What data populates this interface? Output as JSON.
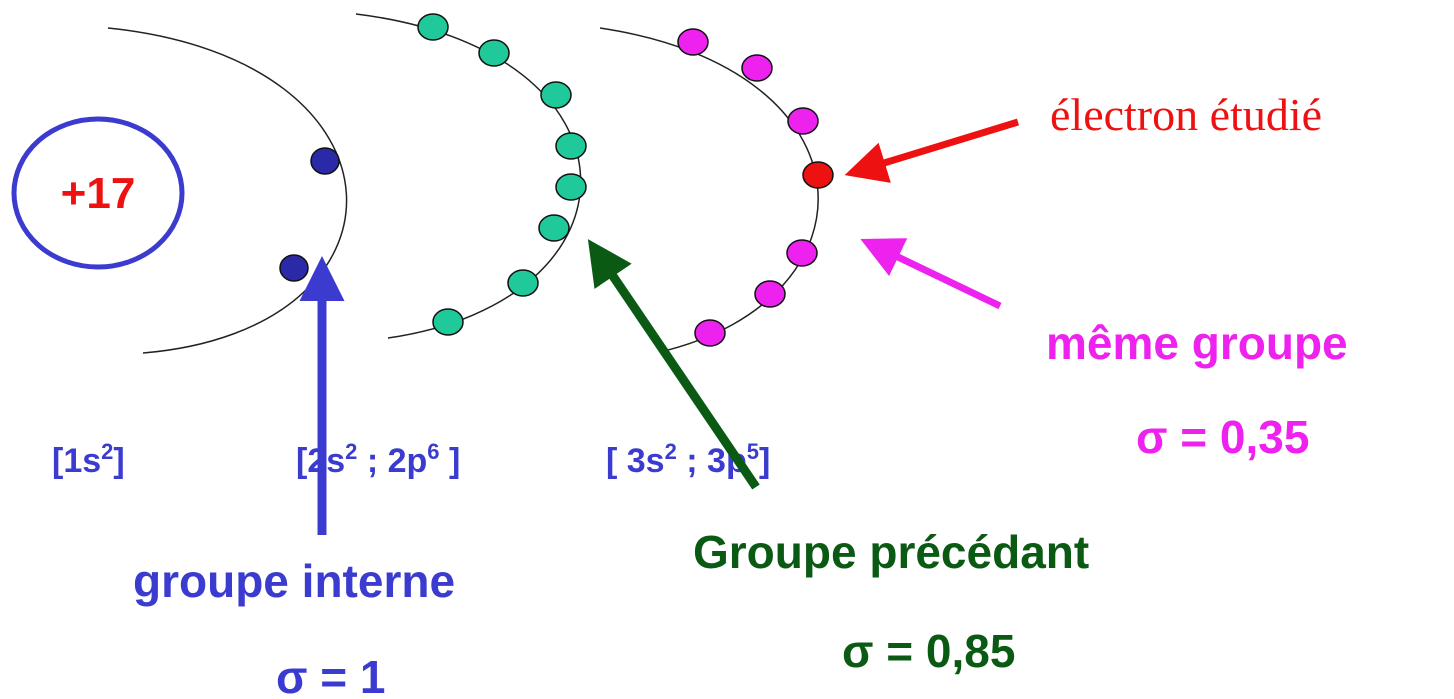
{
  "nucleus": {
    "charge": "+17"
  },
  "shells": [
    {
      "config_main": "[1s",
      "config_sup": "2",
      "config_end": "]"
    },
    {
      "config": [
        {
          "main": "[2s",
          "sup": "2"
        },
        {
          "main": " ; 2p",
          "sup": "6"
        },
        {
          "main": " ]",
          "sup": ""
        }
      ]
    },
    {
      "config": [
        {
          "main": "[ 3s",
          "sup": "2"
        },
        {
          "main": " ; 3p",
          "sup": "5"
        },
        {
          "main": "]",
          "sup": ""
        }
      ]
    }
  ],
  "labels": {
    "studied": "électron étudié",
    "same_group": "même groupe",
    "same_sigma": "σ = 0,35",
    "previous_group": "Groupe précédant",
    "previous_sigma": "σ = 0,85",
    "internal_group": "groupe interne",
    "internal_sigma": "σ = 1"
  },
  "colors": {
    "nucleus_ring": "#3b3bd0",
    "nucleus_text": "#ee1111",
    "shell1_electron": "#2a2aa8",
    "shell2_electron": "#1fc99a",
    "shell3_electron": "#ee22ee",
    "studied_electron": "#ee1111",
    "blue_text": "#3b3bd0",
    "green_text": "#0b5a14",
    "magenta_text": "#ee22ee",
    "red_text": "#ee1111"
  }
}
